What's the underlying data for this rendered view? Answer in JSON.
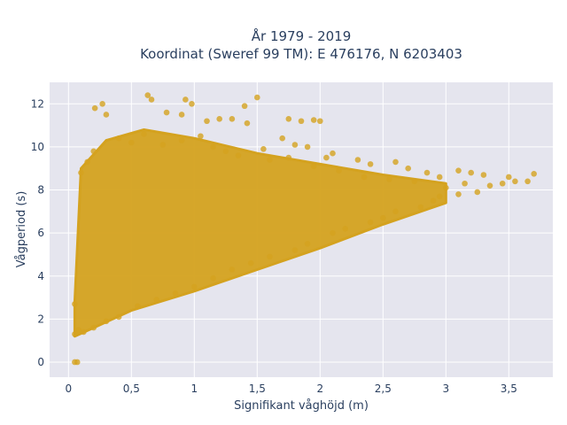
{
  "chart_data": {
    "type": "scatter",
    "title_line1": "År 1979 - 2019",
    "title_line2": "Koordinat (Sweref 99 TM): E 476176, N 6203403",
    "xlabel": "Signifikant våghöjd (m)",
    "ylabel": "Vågperiod (s)",
    "xlim": [
      -0.15,
      3.85
    ],
    "ylim": [
      -0.7,
      13.0
    ],
    "x_ticks": [
      0,
      0.5,
      1,
      1.5,
      2,
      2.5,
      3,
      3.5
    ],
    "x_tick_labels": [
      "0",
      "0,5",
      "1",
      "1,5",
      "2",
      "2,5",
      "3",
      "3,5"
    ],
    "y_ticks": [
      0,
      2,
      4,
      6,
      8,
      10,
      12
    ],
    "y_tick_labels": [
      "0",
      "2",
      "4",
      "6",
      "8",
      "10",
      "12"
    ],
    "grid": true,
    "marker_color": "#D4A21F",
    "background_color": "#E5E5EE",
    "bulk_region_approx": [
      [
        0.05,
        1.2
      ],
      [
        0.2,
        1.6
      ],
      [
        0.5,
        2.4
      ],
      [
        1.0,
        3.3
      ],
      [
        1.5,
        4.3
      ],
      [
        2.0,
        5.3
      ],
      [
        2.5,
        6.4
      ],
      [
        3.0,
        7.4
      ],
      [
        3.0,
        8.3
      ],
      [
        2.5,
        8.7
      ],
      [
        2.0,
        9.2
      ],
      [
        1.5,
        9.7
      ],
      [
        1.0,
        10.4
      ],
      [
        0.6,
        10.8
      ],
      [
        0.3,
        10.3
      ],
      [
        0.1,
        9.0
      ],
      [
        0.05,
        2.8
      ]
    ],
    "points": [
      [
        0.05,
        0.0
      ],
      [
        0.07,
        0.0
      ],
      [
        0.63,
        12.4
      ],
      [
        0.66,
        12.2
      ],
      [
        1.5,
        12.3
      ],
      [
        1.4,
        11.9
      ],
      [
        0.93,
        12.2
      ],
      [
        0.98,
        12.0
      ],
      [
        0.27,
        12.0
      ],
      [
        0.21,
        11.8
      ],
      [
        0.3,
        11.5
      ],
      [
        0.78,
        11.6
      ],
      [
        0.9,
        11.5
      ],
      [
        1.1,
        11.2
      ],
      [
        1.2,
        11.3
      ],
      [
        1.3,
        11.3
      ],
      [
        1.42,
        11.1
      ],
      [
        1.75,
        11.3
      ],
      [
        1.85,
        11.2
      ],
      [
        1.95,
        11.25
      ],
      [
        2.0,
        11.2
      ],
      [
        1.7,
        10.4
      ],
      [
        1.8,
        10.1
      ],
      [
        1.9,
        10.0
      ],
      [
        2.05,
        9.5
      ],
      [
        2.1,
        9.7
      ],
      [
        2.3,
        9.4
      ],
      [
        2.4,
        9.2
      ],
      [
        2.6,
        9.3
      ],
      [
        2.7,
        9.0
      ],
      [
        2.85,
        8.8
      ],
      [
        2.95,
        8.6
      ],
      [
        3.1,
        8.9
      ],
      [
        3.2,
        8.8
      ],
      [
        3.3,
        8.7
      ],
      [
        3.5,
        8.6
      ],
      [
        3.55,
        8.4
      ],
      [
        3.65,
        8.4
      ],
      [
        3.7,
        8.75
      ],
      [
        3.0,
        8.1
      ],
      [
        3.15,
        8.3
      ],
      [
        3.35,
        8.2
      ],
      [
        3.45,
        8.3
      ],
      [
        3.25,
        7.9
      ],
      [
        3.1,
        7.8
      ],
      [
        2.9,
        7.5
      ],
      [
        2.95,
        7.7
      ],
      [
        2.8,
        7.2
      ],
      [
        2.6,
        7.0
      ],
      [
        2.5,
        6.7
      ],
      [
        2.4,
        6.5
      ],
      [
        2.2,
        6.2
      ],
      [
        2.1,
        6.0
      ],
      [
        1.9,
        5.5
      ],
      [
        1.8,
        5.2
      ],
      [
        1.6,
        4.9
      ],
      [
        1.45,
        4.6
      ],
      [
        1.3,
        4.3
      ],
      [
        1.15,
        3.9
      ],
      [
        1.0,
        3.5
      ],
      [
        0.85,
        3.2
      ],
      [
        0.7,
        2.9
      ],
      [
        0.55,
        2.6
      ],
      [
        0.4,
        2.1
      ],
      [
        0.3,
        1.9
      ],
      [
        0.2,
        1.6
      ],
      [
        0.12,
        1.4
      ],
      [
        0.08,
        1.5
      ],
      [
        0.05,
        2.7
      ],
      [
        0.05,
        1.3
      ],
      [
        0.15,
        9.3
      ],
      [
        0.2,
        9.8
      ],
      [
        0.1,
        8.8
      ],
      [
        0.4,
        10.4
      ],
      [
        0.5,
        10.2
      ],
      [
        0.6,
        10.6
      ],
      [
        0.75,
        10.1
      ],
      [
        0.9,
        10.3
      ],
      [
        1.05,
        10.5
      ],
      [
        1.15,
        10.0
      ],
      [
        1.25,
        9.8
      ],
      [
        1.35,
        9.6
      ],
      [
        1.55,
        9.9
      ],
      [
        1.6,
        9.4
      ],
      [
        1.75,
        9.5
      ],
      [
        1.95,
        9.1
      ],
      [
        2.15,
        8.9
      ],
      [
        2.35,
        8.6
      ],
      [
        2.55,
        8.5
      ],
      [
        2.75,
        8.4
      ]
    ]
  }
}
